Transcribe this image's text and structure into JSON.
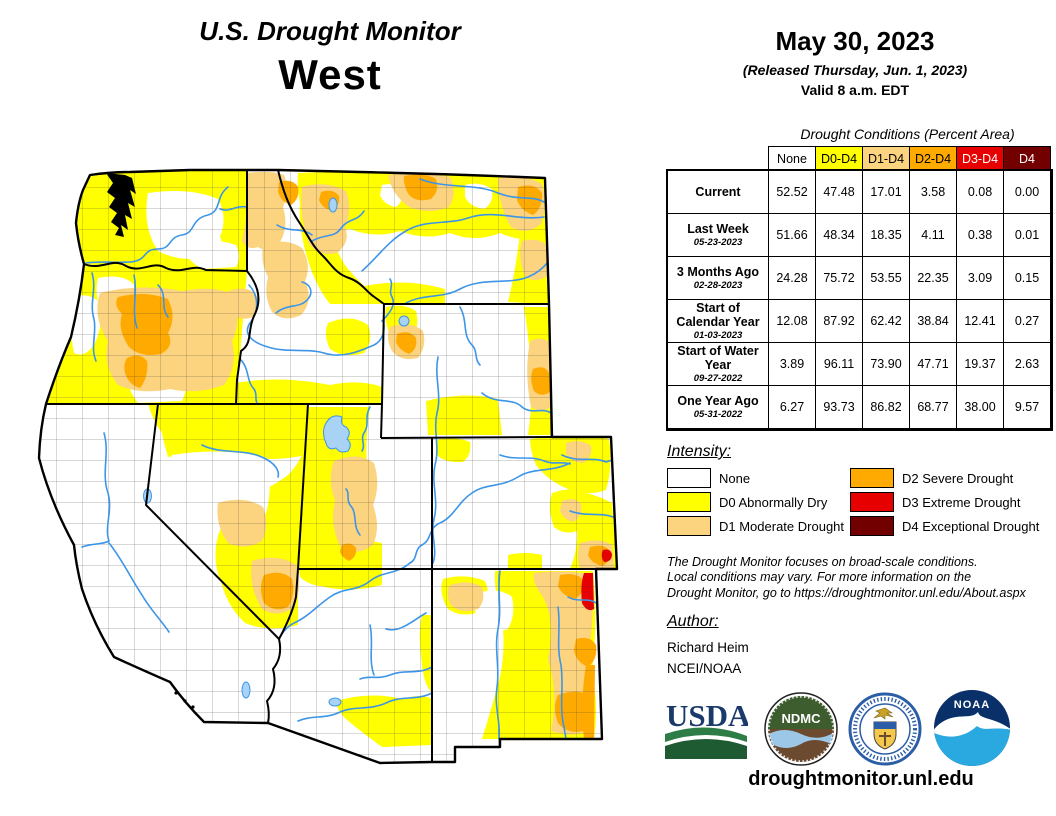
{
  "title": {
    "line1": "U.S. Drought Monitor",
    "line2": "West"
  },
  "date_block": {
    "date": "May 30, 2023",
    "released": "(Released Thursday, Jun. 1, 2023)",
    "valid": "Valid 8 a.m. EDT"
  },
  "table": {
    "caption": "Drought Conditions (Percent Area)",
    "columns": [
      "None",
      "D0-D4",
      "D1-D4",
      "D2-D4",
      "D3-D4",
      "D4"
    ],
    "rows": [
      {
        "label": "Current",
        "date": "",
        "values": [
          "52.52",
          "47.48",
          "17.01",
          "3.58",
          "0.08",
          "0.00"
        ]
      },
      {
        "label": "Last Week",
        "date": "05-23-2023",
        "values": [
          "51.66",
          "48.34",
          "18.35",
          "4.11",
          "0.38",
          "0.01"
        ]
      },
      {
        "label": "3 Months Ago",
        "date": "02-28-2023",
        "values": [
          "24.28",
          "75.72",
          "53.55",
          "22.35",
          "3.09",
          "0.15"
        ]
      },
      {
        "label": "Start of Calendar Year",
        "date": "01-03-2023",
        "values": [
          "12.08",
          "87.92",
          "62.42",
          "38.84",
          "12.41",
          "0.27"
        ]
      },
      {
        "label": "Start of Water Year",
        "date": "09-27-2022",
        "values": [
          "3.89",
          "96.11",
          "73.90",
          "47.71",
          "19.37",
          "2.63"
        ]
      },
      {
        "label": "One Year Ago",
        "date": "05-31-2022",
        "values": [
          "6.27",
          "93.73",
          "86.82",
          "68.77",
          "38.00",
          "9.57"
        ]
      }
    ]
  },
  "legend": {
    "heading": "Intensity:",
    "items": [
      {
        "label": "None",
        "color": "none"
      },
      {
        "label": "D0 Abnormally Dry",
        "color": "d0"
      },
      {
        "label": "D1 Moderate Drought",
        "color": "d1"
      },
      {
        "label": "D2 Severe Drought",
        "color": "d2"
      },
      {
        "label": "D3 Extreme Drought",
        "color": "d3"
      },
      {
        "label": "D4 Exceptional Drought",
        "color": "d4"
      }
    ]
  },
  "colors": {
    "none": "#FFFFFF",
    "d0": "#FFFF00",
    "d1": "#FCD37F",
    "d2": "#FFAA00",
    "d3": "#E60000",
    "d4": "#730000",
    "river": "#3D95E8",
    "lake": "#A9D3F5"
  },
  "disclaimer": {
    "lines": [
      "The Drought Monitor focuses on broad-scale conditions.",
      "Local conditions may vary. For more information on the",
      "Drought Monitor, go to https://droughtmonitor.unl.edu/About.aspx"
    ]
  },
  "author": {
    "heading": "Author:",
    "name": "Richard Heim",
    "org": "NCEI/NOAA"
  },
  "logos": [
    {
      "name": "USDA"
    },
    {
      "name": "NDMC"
    },
    {
      "name": "Department of Commerce"
    },
    {
      "name": "NOAA"
    }
  ],
  "footer": {
    "url": "droughtmonitor.unl.edu"
  }
}
